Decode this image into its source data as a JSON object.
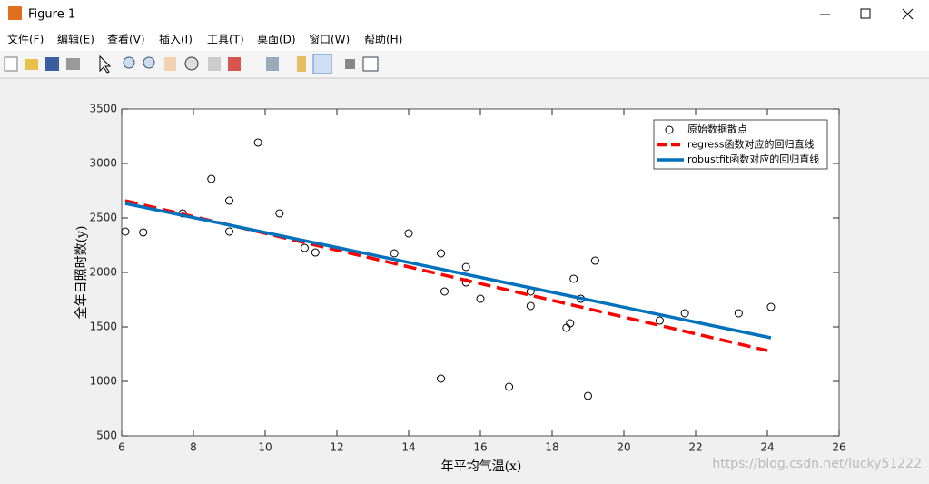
{
  "window": {
    "title": "Figure 1",
    "menus": [
      "文件(F)",
      "编辑(E)",
      "查看(V)",
      "插入(I)",
      "工具(T)",
      "桌面(D)",
      "窗口(W)",
      "帮助(H)"
    ],
    "watermark": "https://blog.csdn.net/lucky51222"
  },
  "chart_data": {
    "type": "scatter",
    "xlabel": "年平均气温(x)",
    "ylabel": "全年日照时数(y)",
    "xlim": [
      6,
      26
    ],
    "xticks": [
      6,
      8,
      10,
      12,
      14,
      16,
      18,
      20,
      22,
      24,
      26
    ],
    "ylim": [
      500,
      3500
    ],
    "yticks": [
      500,
      1000,
      1500,
      2000,
      2500,
      3000,
      3500
    ],
    "legend": "upper right",
    "series": [
      {
        "name": "原始数据散点",
        "type": "scatter",
        "color": "#000000",
        "x": [
          6.1,
          6.6,
          7.7,
          8.5,
          9.0,
          9.0,
          9.8,
          10.4,
          11.1,
          11.4,
          13.6,
          14.0,
          14.9,
          15.0,
          14.9,
          15.6,
          15.6,
          16.0,
          16.8,
          17.4,
          17.4,
          18.4,
          18.5,
          18.6,
          18.8,
          19.0,
          19.2,
          21.0,
          21.7,
          23.2,
          24.1
        ],
        "values": [
          2375,
          2367,
          2542,
          2858,
          2658,
          2375,
          3192,
          2542,
          2225,
          2183,
          2175,
          2358,
          2175,
          1825,
          1025,
          2050,
          1908,
          1758,
          950,
          1825,
          1692,
          1492,
          1533,
          1942,
          1758,
          867,
          2108,
          1558,
          1625,
          1625,
          1683
        ]
      },
      {
        "name": "regress函数对应的回归直线",
        "type": "line",
        "color": "#ff0000",
        "dashed": true,
        "x": [
          6.1,
          24.0
        ],
        "values": [
          2658,
          1283
        ]
      },
      {
        "name": "robustfit函数对应的回归直线",
        "type": "line",
        "color": "#0072bd",
        "dashed": false,
        "x": [
          6.1,
          24.1
        ],
        "values": [
          2633,
          1400
        ]
      }
    ]
  }
}
